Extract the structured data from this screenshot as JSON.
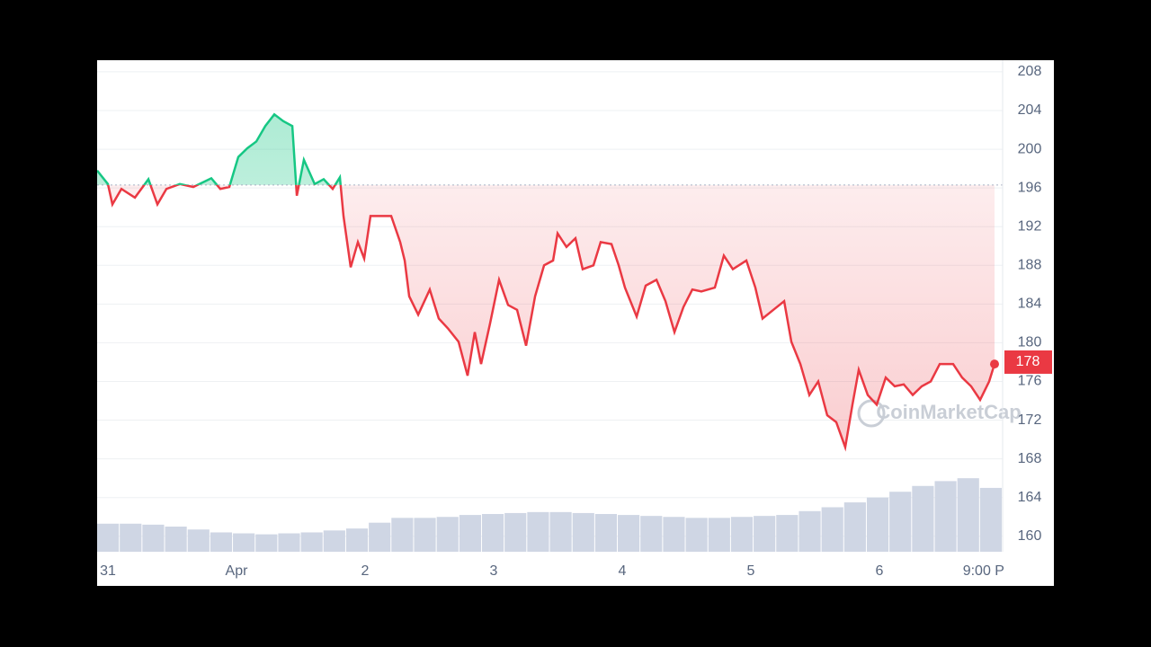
{
  "chart_data": {
    "type": "line",
    "x": [
      -0.084,
      0,
      0.035,
      0.105,
      0.21,
      0.315,
      0.385,
      0.455,
      0.559,
      0.664,
      0.804,
      0.874,
      0.944,
      1.014,
      1.084,
      1.154,
      1.224,
      1.294,
      1.364,
      1.434,
      1.469,
      1.524,
      1.608,
      1.678,
      1.748,
      1.804,
      1.832,
      1.888,
      1.944,
      1.993,
      2.042,
      2.133,
      2.203,
      2.273,
      2.308,
      2.343,
      2.413,
      2.503,
      2.573,
      2.643,
      2.727,
      2.797,
      2.853,
      2.902,
      2.972,
      3.042,
      3.112,
      3.182,
      3.252,
      3.322,
      3.392,
      3.462,
      3.497,
      3.566,
      3.636,
      3.692,
      3.776,
      3.832,
      3.916,
      3.972,
      4.021,
      4.112,
      4.182,
      4.266,
      4.336,
      4.406,
      4.476,
      4.545,
      4.615,
      4.72,
      4.79,
      4.86,
      4.965,
      5.035,
      5.091,
      5.175,
      5.259,
      5.315,
      5.385,
      5.455,
      5.524,
      5.594,
      5.664,
      5.734,
      5.79,
      5.839,
      5.909,
      5.979,
      6.049,
      6.119,
      6.189,
      6.259,
      6.329,
      6.399,
      6.469,
      6.573,
      6.643,
      6.713,
      6.783,
      6.853,
      6.895
    ],
    "values": [
      197.8,
      196.4,
      194.3,
      195.9,
      195.0,
      196.9,
      194.3,
      195.9,
      196.4,
      196.1,
      197.0,
      195.9,
      196.1,
      199.2,
      200.1,
      200.8,
      202.4,
      203.6,
      202.9,
      202.4,
      195.2,
      198.9,
      196.4,
      196.9,
      195.9,
      197.1,
      193.1,
      187.8,
      190.4,
      188.7,
      193.1,
      193.1,
      193.1,
      190.4,
      188.5,
      184.8,
      182.9,
      185.5,
      182.5,
      181.5,
      180.1,
      176.6,
      181.1,
      177.8,
      182.0,
      186.5,
      183.9,
      183.4,
      179.7,
      184.8,
      188.0,
      188.5,
      191.3,
      189.9,
      190.8,
      187.6,
      188.0,
      190.4,
      190.2,
      188.0,
      185.7,
      182.7,
      185.9,
      186.5,
      184.3,
      181.1,
      183.7,
      185.5,
      185.3,
      185.7,
      189.0,
      187.6,
      188.5,
      185.7,
      182.5,
      183.4,
      184.3,
      180.1,
      177.8,
      174.6,
      176.0,
      172.5,
      171.8,
      169.2,
      173.6,
      177.2,
      174.6,
      173.6,
      176.4,
      175.5,
      175.7,
      174.6,
      175.5,
      176.0,
      177.8,
      177.8,
      176.4,
      175.5,
      174.1,
      176.0,
      177.8
    ],
    "baseline": 196.3,
    "up_color": "#16c784",
    "down_color": "#ea3943",
    "current_price": 178,
    "volume": {
      "color": "#cfd6e4",
      "values": [
        161.3,
        161.3,
        161.2,
        161.0,
        160.7,
        160.4,
        160.3,
        160.2,
        160.3,
        160.4,
        160.6,
        160.8,
        161.4,
        161.9,
        161.9,
        162.0,
        162.2,
        162.3,
        162.4,
        162.5,
        162.5,
        162.4,
        162.3,
        162.2,
        162.1,
        162.0,
        161.9,
        161.9,
        162.0,
        162.1,
        162.2,
        162.6,
        163.0,
        163.5,
        164.0,
        164.6,
        165.2,
        165.7,
        166.0,
        165.0
      ]
    },
    "xlim": [
      -0.084,
      6.958
    ],
    "xticks": [
      {
        "value": 0,
        "label": "31"
      },
      {
        "value": 1,
        "label": "Apr"
      },
      2,
      3,
      4,
      5,
      6,
      {
        "value": 6.81,
        "label": "9:00 P"
      }
    ],
    "ylim": [
      158.4,
      209.2
    ],
    "yticks": [
      160,
      164,
      168,
      172,
      176,
      180,
      184,
      188,
      192,
      196,
      200,
      204,
      208
    ],
    "grid": true,
    "watermark": "CoinMarketCap"
  }
}
